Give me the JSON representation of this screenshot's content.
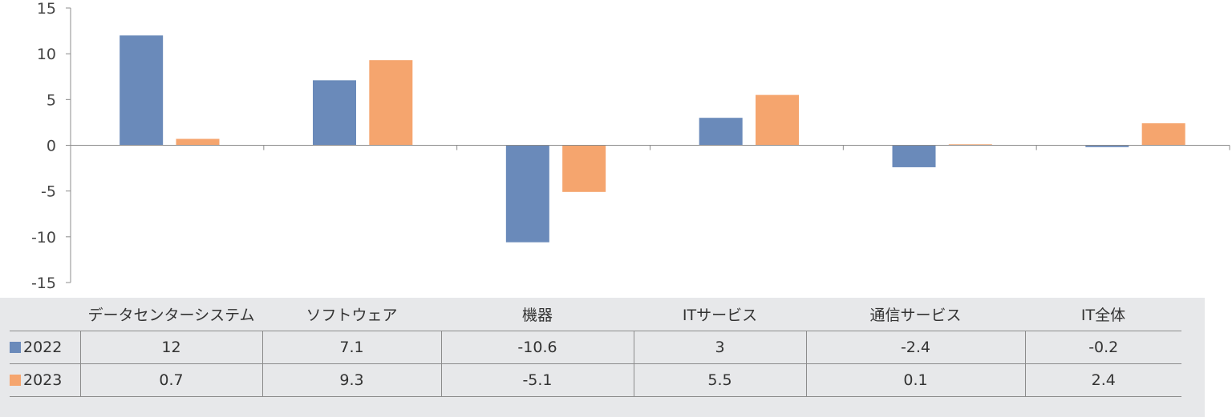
{
  "chart_data": {
    "type": "bar",
    "categories": [
      "データセンターシステム",
      "ソフトウェア",
      "機器",
      "ITサービス",
      "通信サービス",
      "IT全体"
    ],
    "series": [
      {
        "name": "2022",
        "values": [
          12,
          7.1,
          -10.6,
          3,
          -2.4,
          -0.2
        ],
        "color": "#6a8aba"
      },
      {
        "name": "2023",
        "values": [
          0.7,
          9.3,
          -5.1,
          5.5,
          0.1,
          2.4
        ],
        "color": "#f5a56e"
      }
    ],
    "table_values": [
      [
        "12",
        "7.1",
        "-10.6",
        "3",
        "-2.4",
        "-0.2"
      ],
      [
        "0.7",
        "9.3",
        "-5.1",
        "5.5",
        "0.1",
        "2.4"
      ]
    ],
    "yticks": [
      "15",
      "10",
      "5",
      "0",
      "-5",
      "-10",
      "-15"
    ],
    "ylim": [
      -15,
      15
    ],
    "grid": false,
    "legend": "data-table-bottom"
  }
}
